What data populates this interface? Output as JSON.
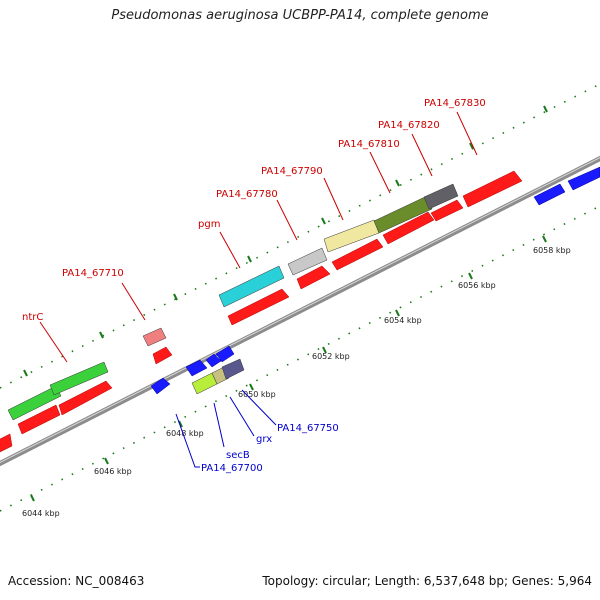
{
  "title": "Pseudomonas aeruginosa UCBPP-PA14, complete genome",
  "footer": {
    "accession": "Accession: NC_008463",
    "summary": "Topology: circular; Length: 6,537,648 bp; Genes: 5,964"
  },
  "scale_labels": [
    "6044 kbp",
    "6046 kbp",
    "6048 kbp",
    "6050 kbp",
    "6052 kbp",
    "6054 kbp",
    "6056 kbp",
    "6058 kbp"
  ],
  "colors": {
    "backbone": "#8c8c8c",
    "red": "#ff1a1a",
    "blue": "#1a1aff",
    "green": "#3ad13a",
    "cyan": "#2ad0d8",
    "pink": "#f08080",
    "lime": "#b8ee3a",
    "tan": "#c8c080",
    "purple": "#58588c",
    "silver": "#c8c8c8",
    "khaki": "#f0e8a0",
    "olive": "#6b8c2a",
    "dark_gray": "#606066",
    "tick": "#1a7a1a",
    "label_red": "#cc0000",
    "label_blue": "#0000cc"
  },
  "red_labels": [
    "ntrC",
    "PA14_67710",
    "pgm",
    "PA14_67780",
    "PA14_67790",
    "PA14_67810",
    "PA14_67820",
    "PA14_67830"
  ],
  "blue_labels": [
    "PA14_67700",
    "secB",
    "grx",
    "PA14_67750"
  ]
}
